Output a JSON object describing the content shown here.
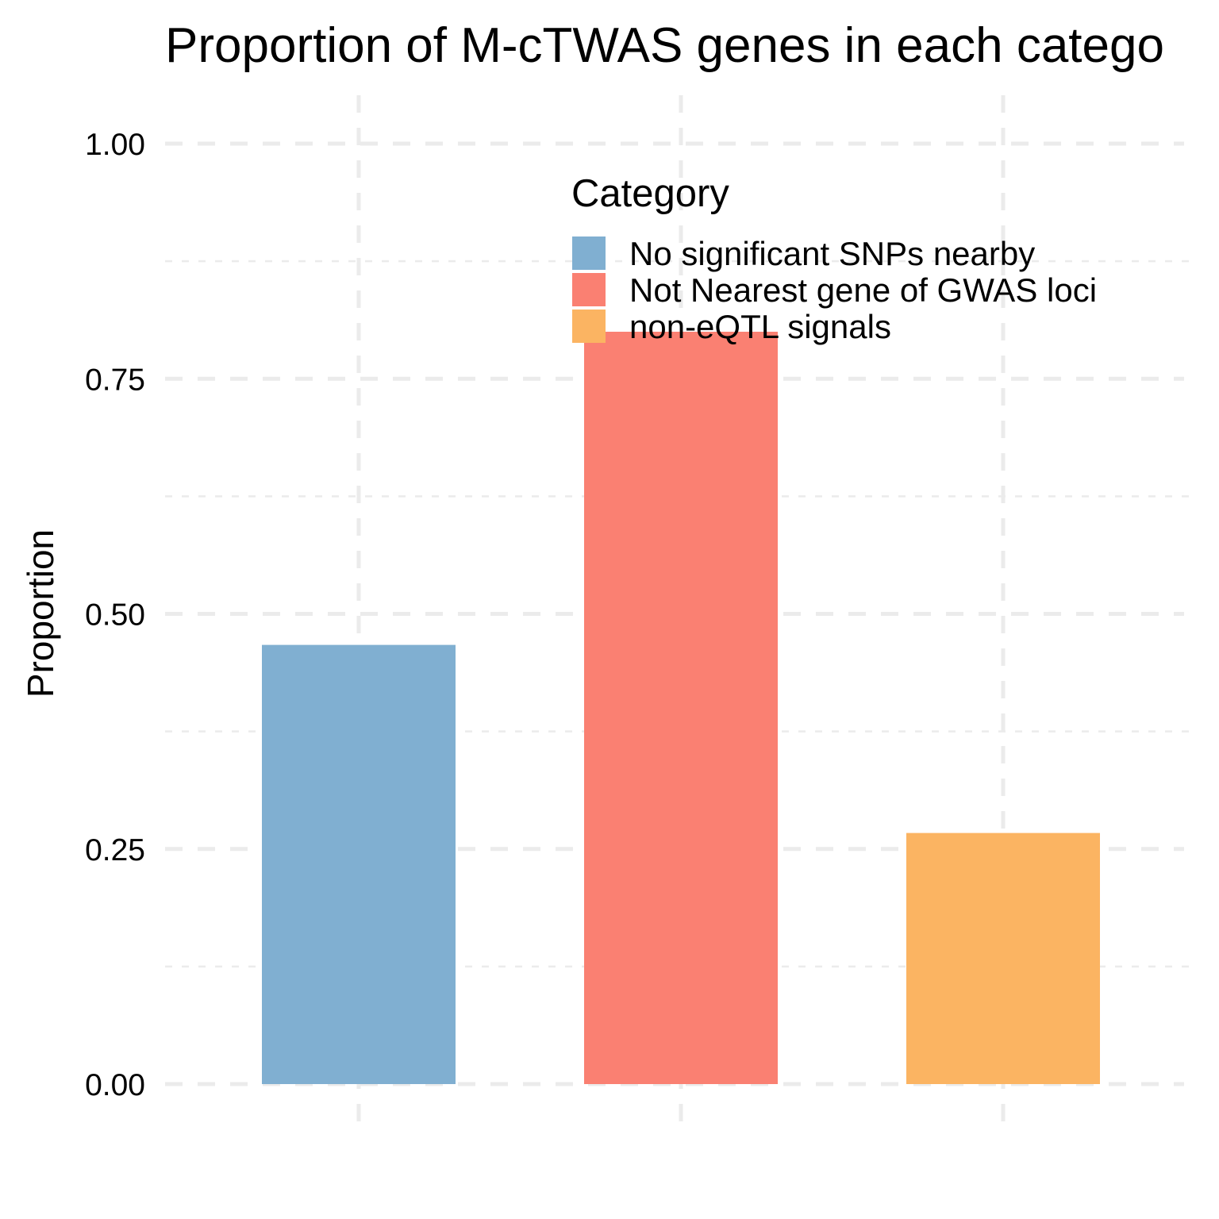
{
  "chart_data": {
    "type": "bar",
    "title": "Proportion of M-cTWAS genes in each catego",
    "xlabel": "",
    "ylabel": "Proportion",
    "ylim": [
      0,
      1.05
    ],
    "y_ticks": [
      "0.00",
      "0.25",
      "0.50",
      "0.75",
      "1.00"
    ],
    "categories": [
      "No significant SNPs nearby",
      "Not Nearest gene of GWAS loci",
      "non-eQTL signals"
    ],
    "values": [
      0.467,
      0.8,
      0.267
    ],
    "colors": [
      "#80AFD1",
      "#FA8072",
      "#FBB462"
    ],
    "grid": true,
    "legend": {
      "title": "Category",
      "placement": "top-right",
      "items": [
        "No significant SNPs nearby",
        "Not Nearest gene of GWAS loci",
        "non-eQTL signals"
      ]
    }
  }
}
